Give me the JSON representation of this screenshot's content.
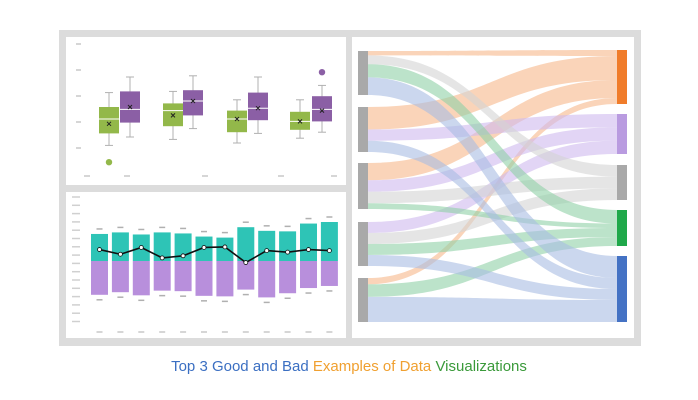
{
  "caption": {
    "part1": "Top 3 Good and Bad ",
    "part2": "Examples of Data ",
    "part3": "Visualizations",
    "color1": "#3b6fc2",
    "color2": "#f0a030",
    "color3": "#3a9a3a"
  },
  "colors": {
    "green": "#93b84a",
    "purple": "#8b5fa5",
    "teal": "#2ec4b6",
    "lavender": "#b88fdc",
    "gray_node": "#a9a9a9",
    "sankey_orange": "#f07c2a",
    "sankey_lavender": "#b99be0",
    "sankey_green": "#1fa84a",
    "sankey_blue": "#4472c4"
  },
  "chart_data": [
    {
      "type": "box",
      "ylim": [
        0,
        100
      ],
      "groups": [
        {
          "series": "green",
          "q1": 28,
          "median": 40,
          "q3": 50,
          "min": 18,
          "max": 62,
          "mean": 36,
          "outliers": [
            4
          ]
        },
        {
          "series": "purple",
          "q1": 37,
          "median": 48,
          "q3": 63,
          "min": 25,
          "max": 75,
          "mean": 50,
          "outliers": []
        },
        {
          "series": "green",
          "q1": 34,
          "median": 47,
          "q3": 53,
          "min": 23,
          "max": 63,
          "mean": 43,
          "outliers": []
        },
        {
          "series": "purple",
          "q1": 43,
          "median": 55,
          "q3": 64,
          "min": 32,
          "max": 76,
          "mean": 55,
          "outliers": []
        },
        {
          "series": "green",
          "q1": 29,
          "median": 40,
          "q3": 47,
          "min": 20,
          "max": 56,
          "mean": 40,
          "outliers": []
        },
        {
          "series": "purple",
          "q1": 39,
          "median": 49,
          "q3": 62,
          "min": 28,
          "max": 75,
          "mean": 49,
          "outliers": []
        },
        {
          "series": "green",
          "q1": 31,
          "median": 38,
          "q3": 46,
          "min": 24,
          "max": 56,
          "mean": 38,
          "outliers": []
        },
        {
          "series": "purple",
          "q1": 38,
          "median": 48,
          "q3": 59,
          "min": 29,
          "max": 68,
          "mean": 47,
          "outliers": [
            79
          ]
        }
      ]
    },
    {
      "type": "bar",
      "ylim": [
        -100,
        100
      ],
      "positive": [
        52,
        55,
        51,
        55,
        53,
        47,
        45,
        65,
        58,
        57,
        72,
        75
      ],
      "negative": [
        -65,
        -60,
        -66,
        -57,
        -58,
        -67,
        -68,
        -55,
        -70,
        -62,
        -52,
        -48
      ],
      "line": [
        22,
        13,
        26,
        6,
        10,
        26,
        27,
        -3,
        20,
        17,
        22,
        20
      ]
    },
    {
      "type": "sankey",
      "sources": 5,
      "targets": 5,
      "flows": [
        {
          "from": 0,
          "to": 0,
          "value": 1,
          "color": "orange"
        },
        {
          "from": 0,
          "to": 2,
          "value": 2,
          "color": "gray"
        },
        {
          "from": 0,
          "to": 3,
          "value": 3,
          "color": "green"
        },
        {
          "from": 0,
          "to": 4,
          "value": 4,
          "color": "blue"
        },
        {
          "from": 1,
          "to": 0,
          "value": 4,
          "color": "orange"
        },
        {
          "from": 1,
          "to": 1,
          "value": 2,
          "color": "lavender"
        },
        {
          "from": 1,
          "to": 4,
          "value": 2,
          "color": "blue"
        },
        {
          "from": 2,
          "to": 0,
          "value": 3,
          "color": "orange"
        },
        {
          "from": 2,
          "to": 1,
          "value": 2,
          "color": "lavender"
        },
        {
          "from": 2,
          "to": 2,
          "value": 2,
          "color": "gray"
        },
        {
          "from": 2,
          "to": 3,
          "value": 1,
          "color": "green"
        },
        {
          "from": 3,
          "to": 1,
          "value": 2,
          "color": "lavender"
        },
        {
          "from": 3,
          "to": 2,
          "value": 2,
          "color": "gray"
        },
        {
          "from": 3,
          "to": 3,
          "value": 2,
          "color": "green"
        },
        {
          "from": 3,
          "to": 4,
          "value": 2,
          "color": "blue"
        },
        {
          "from": 4,
          "to": 0,
          "value": 1,
          "color": "orange"
        },
        {
          "from": 4,
          "to": 3,
          "value": 2,
          "color": "green"
        },
        {
          "from": 4,
          "to": 4,
          "value": 4,
          "color": "blue"
        }
      ]
    }
  ]
}
